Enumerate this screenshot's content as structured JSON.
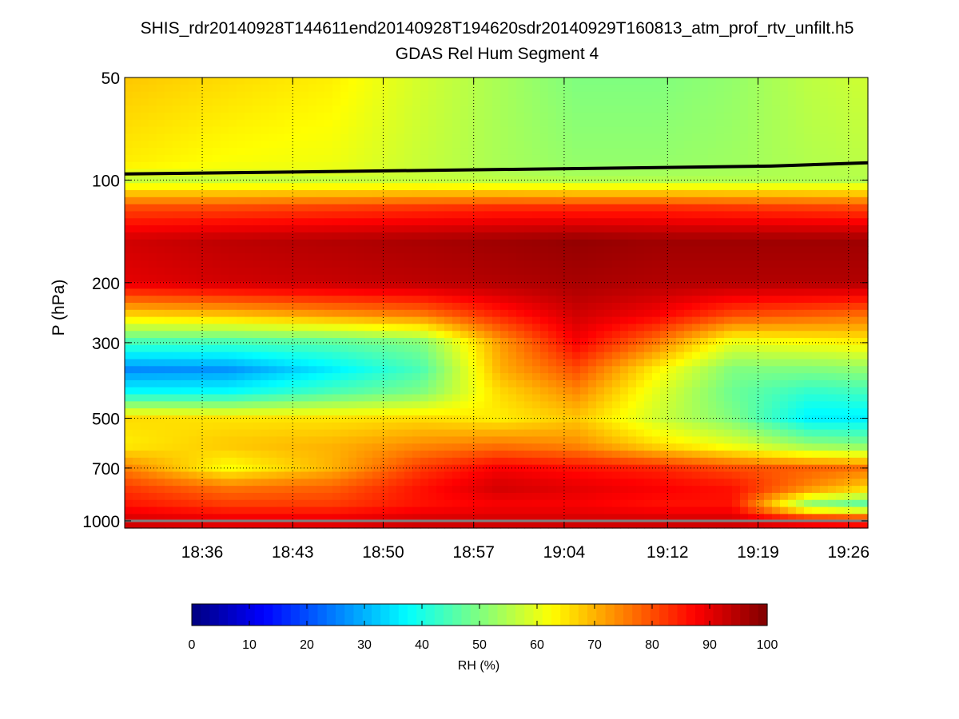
{
  "chart_data": {
    "type": "heatmap",
    "title": "SHIS_rdr20140928T144611end20140928T194620sdr20140929T160813_atm_prof_rtv_unfilt.h5",
    "subtitle": "GDAS Rel Hum Segment 4",
    "xlabel": "",
    "ylabel": "P (hPa)",
    "x_tick_labels": [
      "18:36",
      "18:43",
      "18:50",
      "18:57",
      "19:04",
      "19:12",
      "19:19",
      "19:26"
    ],
    "x_tick_minutes": [
      1116,
      1123,
      1130,
      1137,
      1144,
      1152,
      1159,
      1166
    ],
    "xlim_minutes": [
      1110.0,
      1167.5
    ],
    "y_scale": "log",
    "y_reversed": true,
    "y_tick_labels": [
      "50",
      "100",
      "200",
      "300",
      "500",
      "700",
      "1000"
    ],
    "y_ticks": [
      50,
      100,
      200,
      300,
      500,
      700,
      1000
    ],
    "ylim": [
      50,
      1050
    ],
    "grid": "dotted",
    "colormap": "jet",
    "colorbar": {
      "label": "RH (%)",
      "range": [
        0,
        100
      ],
      "tick_labels": [
        "0",
        "10",
        "20",
        "30",
        "40",
        "50",
        "60",
        "70",
        "80",
        "90",
        "100"
      ]
    },
    "rh_profiles": [
      {
        "t": 1110,
        "p": [
          50,
          90,
          100,
          120,
          150,
          200,
          250,
          300,
          360,
          420,
          500,
          600,
          700,
          800,
          900,
          1000
        ],
        "rh": [
          68,
          64,
          57,
          80,
          92,
          90,
          66,
          44,
          26,
          38,
          66,
          64,
          75,
          82,
          86,
          92
        ]
      },
      {
        "t": 1118,
        "p": [
          50,
          90,
          100,
          120,
          150,
          200,
          250,
          300,
          360,
          420,
          500,
          600,
          700,
          800,
          900,
          1000
        ],
        "rh": [
          66,
          62,
          57,
          80,
          94,
          92,
          68,
          44,
          27,
          38,
          65,
          68,
          62,
          76,
          82,
          90
        ]
      },
      {
        "t": 1126,
        "p": [
          50,
          90,
          100,
          120,
          150,
          200,
          250,
          300,
          360,
          420,
          500,
          600,
          700,
          800,
          900,
          1000
        ],
        "rh": [
          64,
          61,
          57,
          81,
          95,
          93,
          72,
          46,
          36,
          45,
          65,
          70,
          70,
          78,
          82,
          90
        ]
      },
      {
        "t": 1133,
        "p": [
          50,
          90,
          100,
          120,
          150,
          200,
          250,
          300,
          360,
          420,
          500,
          600,
          700,
          800,
          900,
          1000
        ],
        "rh": [
          58,
          57,
          57,
          82,
          96,
          94,
          75,
          50,
          45,
          50,
          66,
          74,
          82,
          86,
          86,
          92
        ]
      },
      {
        "t": 1139,
        "p": [
          50,
          90,
          100,
          120,
          150,
          200,
          250,
          300,
          360,
          420,
          500,
          600,
          700,
          800,
          900,
          1000
        ],
        "rh": [
          54,
          54,
          56,
          83,
          97,
          95,
          84,
          72,
          70,
          66,
          64,
          76,
          88,
          92,
          88,
          92
        ]
      },
      {
        "t": 1145,
        "p": [
          50,
          90,
          100,
          120,
          150,
          200,
          250,
          300,
          360,
          420,
          500,
          600,
          700,
          800,
          900,
          1000
        ],
        "rh": [
          50,
          52,
          55,
          83,
          98,
          96,
          92,
          88,
          80,
          74,
          68,
          74,
          86,
          90,
          88,
          92
        ]
      },
      {
        "t": 1151,
        "p": [
          50,
          90,
          100,
          120,
          150,
          200,
          250,
          300,
          360,
          420,
          500,
          600,
          700,
          800,
          900,
          1000
        ],
        "rh": [
          50,
          52,
          55,
          83,
          97,
          95,
          88,
          76,
          64,
          60,
          58,
          66,
          84,
          88,
          86,
          92
        ]
      },
      {
        "t": 1157,
        "p": [
          50,
          90,
          100,
          120,
          150,
          200,
          250,
          300,
          360,
          420,
          500,
          600,
          700,
          800,
          900,
          1000
        ],
        "rh": [
          52,
          53,
          55,
          82,
          97,
          95,
          80,
          60,
          50,
          48,
          50,
          60,
          80,
          86,
          86,
          92
        ]
      },
      {
        "t": 1163,
        "p": [
          50,
          90,
          100,
          120,
          150,
          200,
          250,
          300,
          360,
          420,
          500,
          600,
          700,
          800,
          900,
          1000
        ],
        "rh": [
          56,
          55,
          55,
          81,
          97,
          95,
          78,
          62,
          50,
          42,
          36,
          52,
          78,
          74,
          50,
          88
        ]
      },
      {
        "t": 1168,
        "p": [
          50,
          90,
          100,
          120,
          150,
          200,
          250,
          300,
          360,
          420,
          500,
          600,
          700,
          800,
          900,
          1000
        ],
        "rh": [
          58,
          56,
          55,
          80,
          97,
          95,
          76,
          64,
          52,
          44,
          36,
          50,
          76,
          66,
          44,
          86
        ]
      }
    ],
    "tropopause_line": {
      "color": "#000000",
      "t": [
        1110,
        1120,
        1130,
        1140,
        1150,
        1160,
        1167.5
      ],
      "p": [
        96,
        95,
        94,
        93,
        92,
        91,
        89
      ]
    },
    "surface_line": {
      "color": "#808080",
      "t": [
        1110,
        1167.5
      ],
      "p": [
        1000,
        1000
      ]
    }
  }
}
